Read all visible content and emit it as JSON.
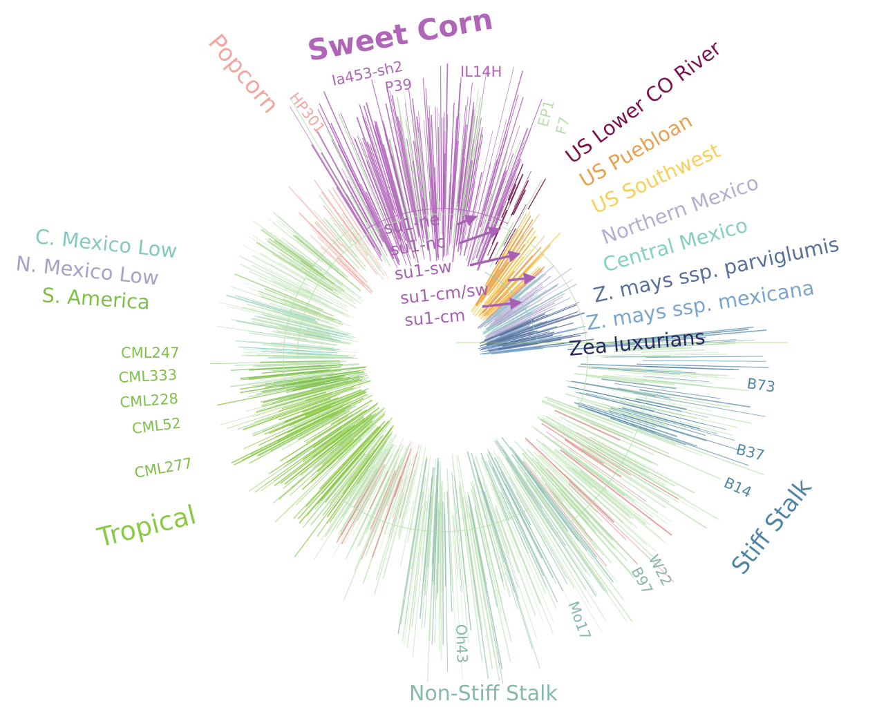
{
  "colors": {
    "sweet_corn": "#b065b8",
    "popcorn": "#f2a7a1",
    "us_lower_co_river": "#7a1550",
    "us_puebloan": "#e7a150",
    "us_southwest": "#f3d15c",
    "northern_mexico": "#b5aed3",
    "central_mexico": "#87cfc1",
    "parviglumis": "#5a6f9a",
    "mexicana": "#7ba5cc",
    "zea_luxurians": "#2b2a5e",
    "c_mexico_low": "#86c9be",
    "n_mexico_low": "#a9a2c8",
    "s_america": "#7ec04a",
    "tropical": "#8cc947",
    "light_green": "#b8dfae",
    "stiff_stalk": "#4f86a6",
    "non_stiff_stalk": "#86b8ae",
    "red_accent": "#e3747b"
  },
  "groups": [
    {
      "id": "sweet_corn",
      "label": "Sweet Corn",
      "color": "#b065b8",
      "icon": "tree-clade"
    },
    {
      "id": "popcorn",
      "label": "Popcorn",
      "color": "#f2a7a1",
      "icon": "tree-clade"
    },
    {
      "id": "us_lower_co_river",
      "label": "US Lower CO River",
      "color": "#7a1550"
    },
    {
      "id": "us_puebloan",
      "label": "US Puebloan",
      "color": "#e7a150"
    },
    {
      "id": "us_southwest",
      "label": "US Southwest",
      "color": "#f3d15c"
    },
    {
      "id": "northern_mexico",
      "label": "Northern Mexico",
      "color": "#b5aed3"
    },
    {
      "id": "central_mexico",
      "label": "Central Mexico",
      "color": "#87cfc1"
    },
    {
      "id": "parviglumis",
      "label": "Z. mays ssp. parviglumis",
      "color": "#5a6f9a"
    },
    {
      "id": "mexicana",
      "label": "Z. mays ssp. mexicana",
      "color": "#7ba5cc"
    },
    {
      "id": "zea_luxurians",
      "label": "Zea luxurians",
      "color": "#2b2a5e"
    },
    {
      "id": "c_mexico_low",
      "label": "C. Mexico Low",
      "color": "#86c9be"
    },
    {
      "id": "n_mexico_low",
      "label": "N. Mexico Low",
      "color": "#a9a2c8"
    },
    {
      "id": "s_america",
      "label": "S. America",
      "color": "#7ec04a"
    },
    {
      "id": "tropical",
      "label": "Tropical",
      "color": "#8cc947"
    },
    {
      "id": "stiff_stalk",
      "label": "Stiff Stalk",
      "color": "#4f86a6"
    },
    {
      "id": "non_stiff_stalk",
      "label": "Non-Stiff Stalk",
      "color": "#86b8ae"
    }
  ],
  "lines": {
    "sweet_corn": [
      "Ia453-sh2",
      "P39",
      "IL14H"
    ],
    "popcorn": [
      "HP301"
    ],
    "ep_f": [
      "EP1",
      "F7"
    ],
    "tropical": [
      "CML247",
      "CML333",
      "CML228",
      "CML52",
      "CML277"
    ],
    "stiff_stalk": [
      "B73",
      "B37",
      "B14"
    ],
    "other": [
      "W22",
      "B97",
      "Mo17",
      "Oh43"
    ]
  },
  "alleles": [
    "su1-ne",
    "su1-nc",
    "su1-sw",
    "su1-cm/sw",
    "su1-cm"
  ],
  "annotations": {
    "group_sweet_corn": "Sweet Corn",
    "group_popcorn": "Popcorn",
    "group_us_lower_co_river": "US Lower CO River",
    "group_us_puebloan": "US Puebloan",
    "group_us_southwest": "US Southwest",
    "group_northern_mexico": "Northern Mexico",
    "group_central_mexico": "Central Mexico",
    "group_parviglumis": "Z. mays ssp. parviglumis",
    "group_mexicana": "Z. mays ssp. mexicana",
    "group_zea_luxurians": "Zea luxurians",
    "group_c_mexico_low": "C. Mexico Low",
    "group_n_mexico_low": "N. Mexico Low",
    "group_s_america": "S. America",
    "group_tropical": "Tropical",
    "group_stiff_stalk": "Stiff Stalk",
    "group_non_stiff_stalk": "Non-Stiff Stalk",
    "line_ia453": "Ia453-sh2",
    "line_p39": "P39",
    "line_il14h": "IL14H",
    "line_hp301": "HP301",
    "line_ep1": "EP1",
    "line_f7": "F7",
    "line_cml247": "CML247",
    "line_cml333": "CML333",
    "line_cml228": "CML228",
    "line_cml52": "CML52",
    "line_cml277": "CML277",
    "line_b73": "B73",
    "line_b37": "B37",
    "line_b14": "B14",
    "line_w22": "W22",
    "line_b97": "B97",
    "line_mo17": "Mo17",
    "line_oh43": "Oh43",
    "allele_su1_ne": "su1-ne",
    "allele_su1_nc": "su1-nc",
    "allele_su1_sw": "su1-sw",
    "allele_su1_cm_sw": "su1-cm/sw",
    "allele_su1_cm": "su1-cm"
  }
}
